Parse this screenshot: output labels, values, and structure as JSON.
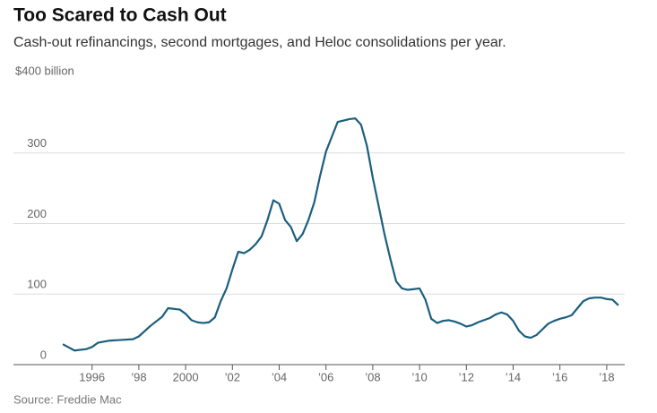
{
  "chart_data": {
    "type": "line",
    "title": "Too Scared to Cash Out",
    "subtitle": "Cash-out refinancings, second mortgages, and Heloc consolidations per year.",
    "source": "Source: Freddie Mac",
    "x": [
      1994.75,
      1995.25,
      1995.75,
      1996.0,
      1996.25,
      1996.75,
      1997.25,
      1997.75,
      1998.0,
      1998.5,
      1999.0,
      1999.25,
      1999.75,
      2000.0,
      2000.25,
      2000.5,
      2000.75,
      2001.0,
      2001.25,
      2001.5,
      2001.75,
      2002.0,
      2002.25,
      2002.5,
      2002.75,
      2003.0,
      2003.25,
      2003.5,
      2003.75,
      2004.0,
      2004.25,
      2004.5,
      2004.75,
      2005.0,
      2005.25,
      2005.5,
      2005.75,
      2006.0,
      2006.25,
      2006.5,
      2006.75,
      2007.0,
      2007.25,
      2007.5,
      2007.75,
      2008.0,
      2008.25,
      2008.5,
      2008.75,
      2009.0,
      2009.25,
      2009.5,
      2009.75,
      2010.0,
      2010.25,
      2010.5,
      2010.75,
      2011.0,
      2011.25,
      2011.5,
      2011.75,
      2012.0,
      2012.25,
      2012.5,
      2012.75,
      2013.0,
      2013.25,
      2013.5,
      2013.75,
      2014.0,
      2014.25,
      2014.5,
      2014.75,
      2015.0,
      2015.25,
      2015.5,
      2015.75,
      2016.0,
      2016.25,
      2016.5,
      2016.75,
      2017.0,
      2017.25,
      2017.5,
      2017.75,
      2018.0,
      2018.25,
      2018.5
    ],
    "series": [
      {
        "color": "#1b5f7e",
        "values": [
          29,
          20,
          22,
          25,
          31,
          34,
          35,
          36,
          40,
          55,
          68,
          80,
          78,
          72,
          63,
          60,
          59,
          60,
          67,
          90,
          108,
          135,
          160,
          158,
          163,
          171,
          182,
          205,
          233,
          228,
          205,
          195,
          175,
          185,
          205,
          230,
          268,
          302,
          323,
          344,
          346,
          348,
          349,
          340,
          310,
          265,
          225,
          185,
          150,
          118,
          108,
          106,
          107,
          108,
          92,
          65,
          59,
          62,
          63,
          61,
          58,
          54,
          56,
          60,
          63,
          66,
          71,
          74,
          71,
          62,
          48,
          40,
          38,
          42,
          50,
          58,
          62,
          65,
          67,
          70,
          80,
          90,
          94,
          95,
          95,
          93,
          92,
          84
        ]
      }
    ],
    "xlim": [
      1992.64,
      2018.77
    ],
    "xticks": [
      1996,
      {
        "value": 1998,
        "label": "’98"
      },
      2000,
      {
        "value": 2002,
        "label": "’02"
      },
      {
        "value": 2004,
        "label": "’04"
      },
      {
        "value": 2006,
        "label": "’06"
      },
      {
        "value": 2008,
        "label": "’08"
      },
      {
        "value": 2010,
        "label": "’10"
      },
      {
        "value": 2012,
        "label": "’12"
      },
      {
        "value": 2014,
        "label": "’14"
      },
      {
        "value": 2016,
        "label": "’16"
      },
      {
        "value": 2018,
        "label": "’18"
      }
    ],
    "ylim": [
      0,
      400
    ],
    "yticks": [
      0,
      100,
      200,
      300,
      {
        "value": 400,
        "label": "$400 billion"
      }
    ],
    "grid": true
  }
}
